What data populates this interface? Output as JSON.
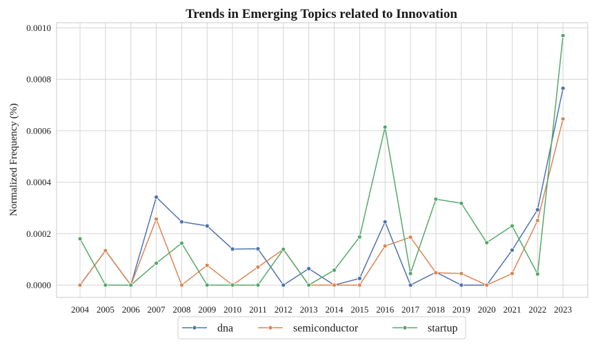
{
  "chart_data": {
    "type": "line",
    "title": "Trends in Emerging Topics related to Innovation",
    "xlabel": "",
    "ylabel": "Normalized Frequency (%)",
    "x": [
      "2004",
      "2005",
      "2006",
      "2007",
      "2008",
      "2009",
      "2010",
      "2011",
      "2012",
      "2013",
      "2014",
      "2015",
      "2016",
      "2017",
      "2018",
      "2019",
      "2020",
      "2021",
      "2022",
      "2023"
    ],
    "yticks": [
      "0.0000",
      "0.0002",
      "0.0004",
      "0.0006",
      "0.0008",
      "0.0010"
    ],
    "ylim": [
      -4.8e-05,
      0.00102
    ],
    "grid": true,
    "legend_position": "bottom-center",
    "series": [
      {
        "name": "dna",
        "color": "#4c72b0",
        "values": [
          0.0,
          0.000134,
          0.0,
          0.000342,
          0.000246,
          0.00023,
          0.00014,
          0.000141,
          0.0,
          6.4e-05,
          0.0,
          2.6e-05,
          0.000246,
          0.0,
          5e-05,
          0.0,
          0.0,
          0.000136,
          0.000293,
          0.000765
        ]
      },
      {
        "name": "semiconductor",
        "color": "#dd8452",
        "values": [
          0.0,
          0.000134,
          0.0,
          0.000257,
          0.0,
          7.7e-05,
          0.0,
          7e-05,
          0.000139,
          0.0,
          0.0,
          0.0,
          0.000152,
          0.000186,
          4.8e-05,
          4.5e-05,
          0.0,
          4.5e-05,
          0.000251,
          0.000646
        ]
      },
      {
        "name": "startup",
        "color": "#55a868",
        "values": [
          0.00018,
          0.0,
          0.0,
          8.5e-05,
          0.000163,
          0.0,
          0.0,
          0.0,
          0.000139,
          0.0,
          5.8e-05,
          0.000187,
          0.000614,
          4.5e-05,
          0.000334,
          0.000318,
          0.000165,
          0.00023,
          4.3e-05,
          0.00097
        ]
      }
    ]
  }
}
